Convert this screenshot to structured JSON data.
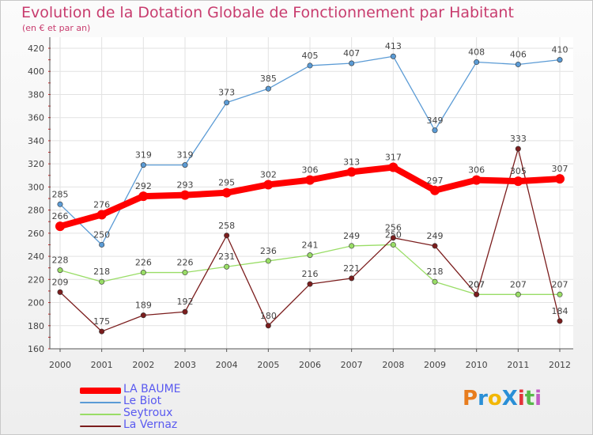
{
  "title": "Evolution de la Dotation Globale de Fonctionnement par Habitant",
  "subtitle": "(en € et par an)",
  "brand": {
    "text": "ProXiti",
    "colors": [
      "#e87d1e",
      "#2a8fd6",
      "#f2b705",
      "#2a8fd6",
      "#e3343a",
      "#58b84a",
      "#c25dc5"
    ]
  },
  "chart_data": {
    "type": "line",
    "x": [
      "2000",
      "2001",
      "2002",
      "2003",
      "2004",
      "2005",
      "2006",
      "2007",
      "2008",
      "2009",
      "2010",
      "2011",
      "2012"
    ],
    "ylim": [
      160,
      420
    ],
    "yticks": [
      160,
      180,
      200,
      220,
      240,
      260,
      280,
      300,
      320,
      340,
      360,
      380,
      400,
      420
    ],
    "grid": true,
    "legend": "bottom-left",
    "series": [
      {
        "name": "Le Biot",
        "color": "#5b9bd5",
        "values": [
          285,
          250,
          319,
          319,
          373,
          385,
          405,
          407,
          413,
          349,
          408,
          406,
          410
        ]
      },
      {
        "name": "Seytroux",
        "color": "#99dd66",
        "values": [
          228,
          218,
          226,
          226,
          231,
          236,
          241,
          249,
          250,
          218,
          207,
          207,
          207
        ]
      },
      {
        "name": "La Vernaz",
        "color": "#7b1d1d",
        "values": [
          209,
          175,
          189,
          192,
          258,
          180,
          216,
          221,
          256,
          249,
          207,
          333,
          184
        ]
      },
      {
        "name": "LA BAUME",
        "color": "#ff0000",
        "values": [
          266,
          276,
          292,
          293,
          295,
          302,
          306,
          313,
          317,
          297,
          306,
          305,
          307
        ]
      }
    ]
  },
  "legend_order": [
    "LA BAUME",
    "Le Biot",
    "Seytroux",
    "La Vernaz"
  ]
}
